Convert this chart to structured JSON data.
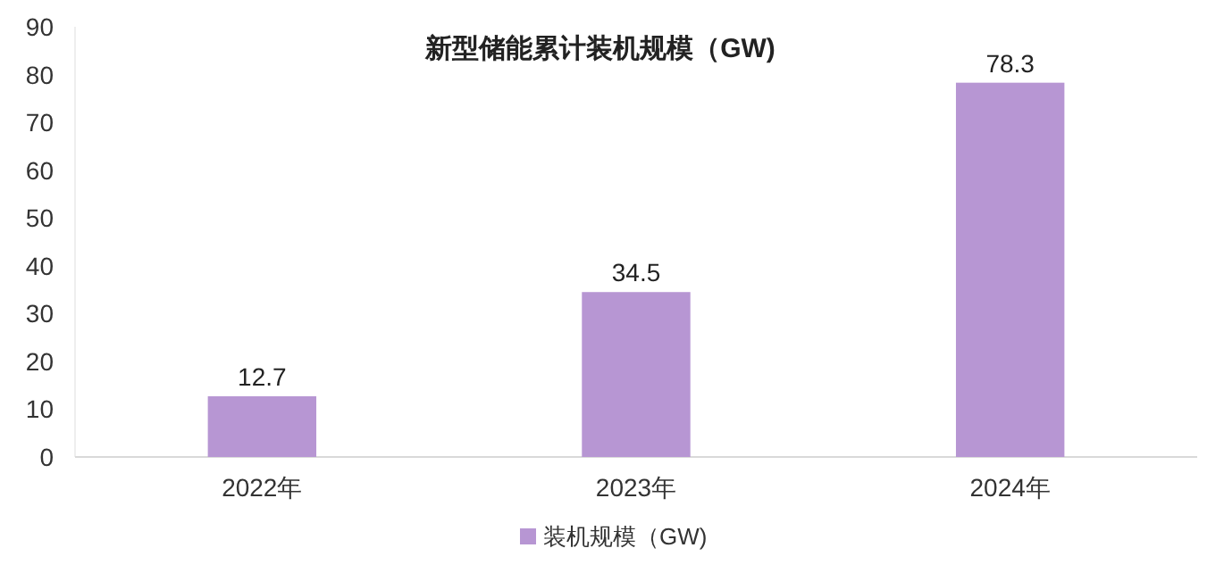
{
  "chart_data": {
    "type": "bar",
    "title": "新型储能累计装机规模（GW)",
    "categories": [
      "2022年",
      "2023年",
      "2024年"
    ],
    "series": [
      {
        "name": "装机规模（GW)",
        "color": "#b796d3",
        "values": [
          12.7,
          34.5,
          78.3
        ]
      }
    ],
    "ylim": [
      0,
      90
    ],
    "yticks": [
      0,
      10,
      20,
      30,
      40,
      50,
      60,
      70,
      80,
      90
    ],
    "data_labels": true,
    "legend": "bottom",
    "grid": false
  }
}
